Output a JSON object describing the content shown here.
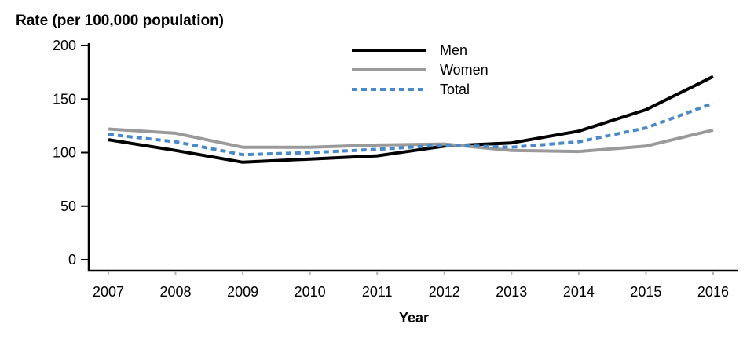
{
  "chart_data": {
    "type": "line",
    "title": "Rate (per 100,000 population)",
    "xlabel": "Year",
    "x": [
      2007,
      2008,
      2009,
      2010,
      2011,
      2012,
      2013,
      2014,
      2015,
      2016
    ],
    "yticks": [
      0,
      50,
      100,
      150,
      200
    ],
    "ylim": [
      0,
      200
    ],
    "grid": false,
    "legend_position": "top-center",
    "axis_color": "#000000",
    "x_tick_color": "#b3b3b3",
    "series": [
      {
        "name": "Men",
        "color": "#000000",
        "style": "solid",
        "values": [
          112,
          102,
          91,
          94,
          97,
          106,
          109,
          120,
          140,
          171
        ]
      },
      {
        "name": "Women",
        "color": "#9a9a9a",
        "style": "solid",
        "values": [
          122,
          118,
          105,
          105,
          107,
          108,
          102,
          101,
          106,
          121
        ]
      },
      {
        "name": "Total",
        "color": "#4a89c8",
        "style": "dashed",
        "values": [
          117,
          110,
          98,
          100,
          103,
          107,
          105,
          110,
          123,
          146
        ]
      }
    ]
  }
}
